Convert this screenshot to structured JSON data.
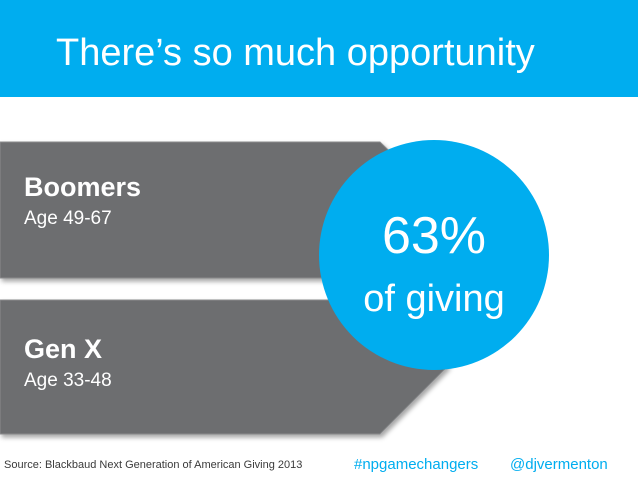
{
  "slide": {
    "title": "There’s so much opportunity"
  },
  "groups": [
    {
      "name": "Boomers",
      "age": "Age 49-67"
    },
    {
      "name": "Gen X",
      "age": "Age 33-48"
    }
  ],
  "stat": {
    "value": "63%",
    "label": "of giving"
  },
  "footer": {
    "source": "Source: Blackbaud Next Generation of American Giving 2013",
    "hashtag": "#npgamechangers",
    "handle": "@djvermenton"
  },
  "colors": {
    "accent": "#00adef",
    "arrow": "#6d6e70",
    "text_on_dark": "#ffffff"
  }
}
